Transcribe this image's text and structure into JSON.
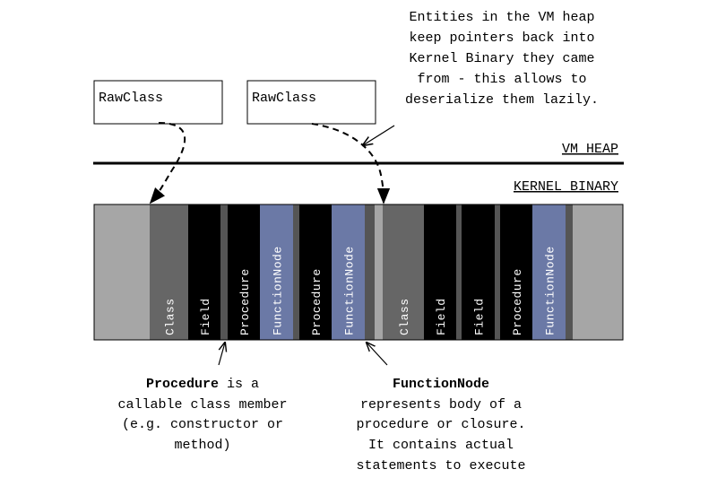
{
  "vm_heap": {
    "label": "VM HEAP",
    "objects": [
      "RawClass",
      "RawClass"
    ]
  },
  "heap_note": [
    "Entities in the VM heap",
    "keep pointers back into",
    "Kernel Binary they came",
    "from - this allows to",
    "deserialize them lazily."
  ],
  "kernel_binary": {
    "label": "KERNEL BINARY",
    "segments": [
      "Class",
      "Field",
      "Procedure",
      "FunctionNode",
      "Procedure",
      "FunctionNode",
      "Class",
      "Field",
      "Field",
      "Procedure",
      "FunctionNode"
    ]
  },
  "procedure_note": {
    "term": "Procedure",
    "lines": [
      " is a",
      "callable class member",
      "(e.g. constructor or",
      "method)"
    ]
  },
  "function_node_note": {
    "term": "FunctionNode",
    "lines": [
      "represents body of a",
      "procedure or closure.",
      "It contains actual",
      "statements to execute"
    ]
  }
}
